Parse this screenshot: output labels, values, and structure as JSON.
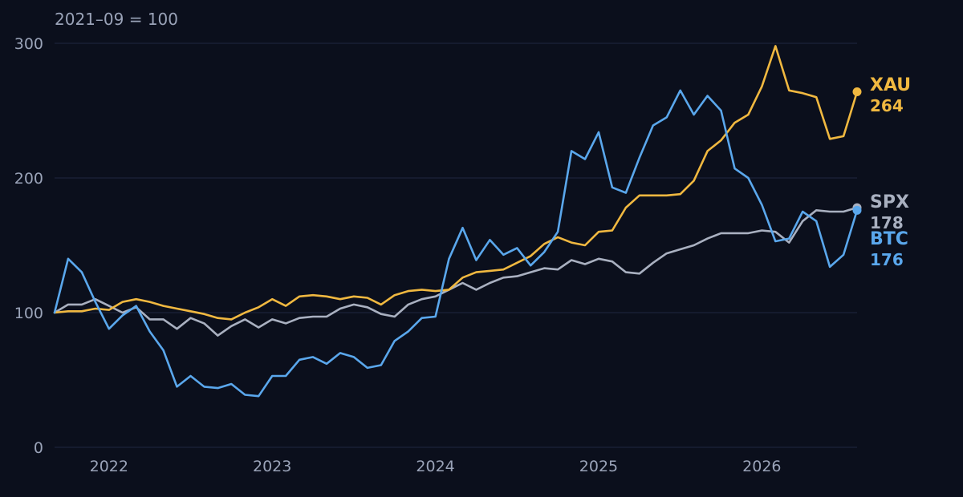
{
  "chart_data": {
    "type": "line",
    "subtitle": "2021–09 = 100",
    "x_label": "",
    "y_label": "",
    "x_range": [
      "2021-09",
      "2026-08"
    ],
    "y_range": [
      0,
      300
    ],
    "y_ticks": [
      0,
      100,
      200,
      300
    ],
    "x_ticks": [
      "2022",
      "2023",
      "2024",
      "2025",
      "2026"
    ],
    "grid": true,
    "legend": "end-of-line labels",
    "x": [
      "2021-09",
      "2021-10",
      "2021-11",
      "2021-12",
      "2022-01",
      "2022-02",
      "2022-03",
      "2022-04",
      "2022-05",
      "2022-06",
      "2022-07",
      "2022-08",
      "2022-09",
      "2022-10",
      "2022-11",
      "2022-12",
      "2023-01",
      "2023-02",
      "2023-03",
      "2023-04",
      "2023-05",
      "2023-06",
      "2023-07",
      "2023-08",
      "2023-09",
      "2023-10",
      "2023-11",
      "2023-12",
      "2024-01",
      "2024-02",
      "2024-03",
      "2024-04",
      "2024-05",
      "2024-06",
      "2024-07",
      "2024-08",
      "2024-09",
      "2024-10",
      "2024-11",
      "2024-12",
      "2025-01",
      "2025-02",
      "2025-03",
      "2025-04",
      "2025-05",
      "2025-06",
      "2025-07",
      "2025-08",
      "2025-09",
      "2025-10",
      "2025-11",
      "2025-12",
      "2026-01",
      "2026-02",
      "2026-03",
      "2026-04",
      "2026-05",
      "2026-06",
      "2026-07",
      "2026-08"
    ],
    "series": [
      {
        "name": "XAU",
        "end_value": "264",
        "color": "#f0b840",
        "values": [
          100,
          101,
          101,
          103,
          102,
          108,
          110,
          108,
          105,
          103,
          101,
          99,
          96,
          95,
          100,
          104,
          110,
          105,
          112,
          113,
          112,
          110,
          112,
          111,
          106,
          113,
          116,
          117,
          116,
          117,
          126,
          130,
          131,
          132,
          137,
          142,
          151,
          156,
          152,
          150,
          160,
          161,
          178,
          187,
          187,
          187,
          188,
          198,
          220,
          228,
          241,
          247,
          268,
          298,
          265,
          263,
          260,
          229,
          231,
          264
        ]
      },
      {
        "name": "SPX",
        "end_value": "178",
        "color": "#a9b0c0",
        "values": [
          100,
          106,
          106,
          110,
          105,
          100,
          104,
          95,
          95,
          88,
          96,
          92,
          83,
          90,
          95,
          89,
          95,
          92,
          96,
          97,
          97,
          103,
          106,
          104,
          99,
          97,
          106,
          110,
          112,
          117,
          122,
          117,
          122,
          126,
          127,
          130,
          133,
          132,
          139,
          136,
          140,
          138,
          130,
          129,
          137,
          144,
          147,
          150,
          155,
          159,
          159,
          159,
          161,
          160,
          152,
          168,
          176,
          175,
          175,
          178
        ]
      },
      {
        "name": "BTC",
        "end_value": "176",
        "color": "#5aa7ec",
        "values": [
          100,
          140,
          130,
          108,
          88,
          98,
          105,
          86,
          72,
          45,
          53,
          45,
          44,
          47,
          39,
          38,
          53,
          53,
          65,
          67,
          62,
          70,
          67,
          59,
          61,
          79,
          86,
          96,
          97,
          140,
          163,
          139,
          154,
          143,
          148,
          135,
          145,
          160,
          220,
          214,
          234,
          193,
          189,
          215,
          239,
          245,
          265,
          247,
          261,
          250,
          207,
          200,
          180,
          153,
          155,
          175,
          168,
          134,
          143,
          176
        ]
      }
    ]
  }
}
